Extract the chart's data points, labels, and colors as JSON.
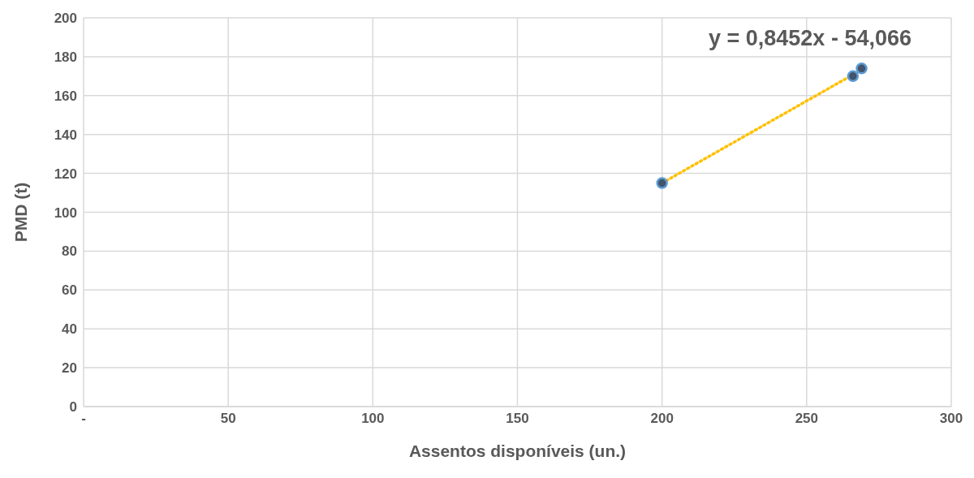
{
  "chart_data": {
    "type": "scatter",
    "xlabel": "Assentos disponíveis (un.)",
    "ylabel": "PMD (t)",
    "xlim": [
      0,
      300
    ],
    "xticks": [
      {
        "value": 0,
        "label": "-"
      },
      50,
      100,
      150,
      200,
      250,
      300
    ],
    "ylim": [
      0,
      200
    ],
    "yticks": [
      0,
      20,
      40,
      60,
      80,
      100,
      120,
      140,
      160,
      180,
      200
    ],
    "grid": true,
    "marker": "circle",
    "legend": false,
    "series": [
      {
        "x": [
          200,
          266,
          269
        ],
        "values": [
          115,
          170,
          174
        ],
        "color": "#44546a"
      },
      {
        "type": "line",
        "x": [
          200,
          269
        ],
        "values": [
          115,
          173.3
        ],
        "color": "#ffc000",
        "line_style": "dotted",
        "marker": "none"
      }
    ],
    "annotations": [
      "y = 0,8452x - 54,066"
    ]
  }
}
